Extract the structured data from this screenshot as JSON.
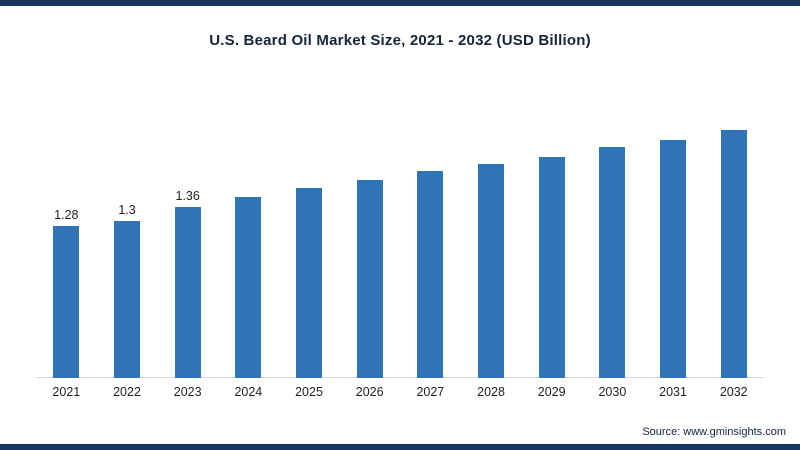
{
  "page": {
    "title": "U.S. Beard Oil Market Size, 2021 - 2032 (USD Billion)"
  },
  "footer": {
    "source": "Source: www.gminsights.com"
  },
  "colors": {
    "bar": "#2E74B6",
    "accent_border": "#17375E",
    "text": "#15253B"
  },
  "chart_data": {
    "type": "bar",
    "title": "U.S. Beard Oil Market Size, 2021 - 2032 (USD Billion)",
    "categories": [
      "2021",
      "2022",
      "2023",
      "2024",
      "2025",
      "2026",
      "2027",
      "2028",
      "2029",
      "2030",
      "2031",
      "2032"
    ],
    "values": [
      1.28,
      1.3,
      1.36,
      1.4,
      1.44,
      1.47,
      1.51,
      1.54,
      1.57,
      1.61,
      1.64,
      1.68
    ],
    "data_labels": [
      "1.28",
      "1.3",
      "1.36",
      "",
      "",
      "",
      "",
      "",
      "",
      "",
      "",
      ""
    ],
    "xlabel": "",
    "ylabel": "USD Billion",
    "ylim": [
      0.64,
      1.9
    ],
    "grid": false,
    "legend": false,
    "source": "Source: www.gminsights.com"
  }
}
